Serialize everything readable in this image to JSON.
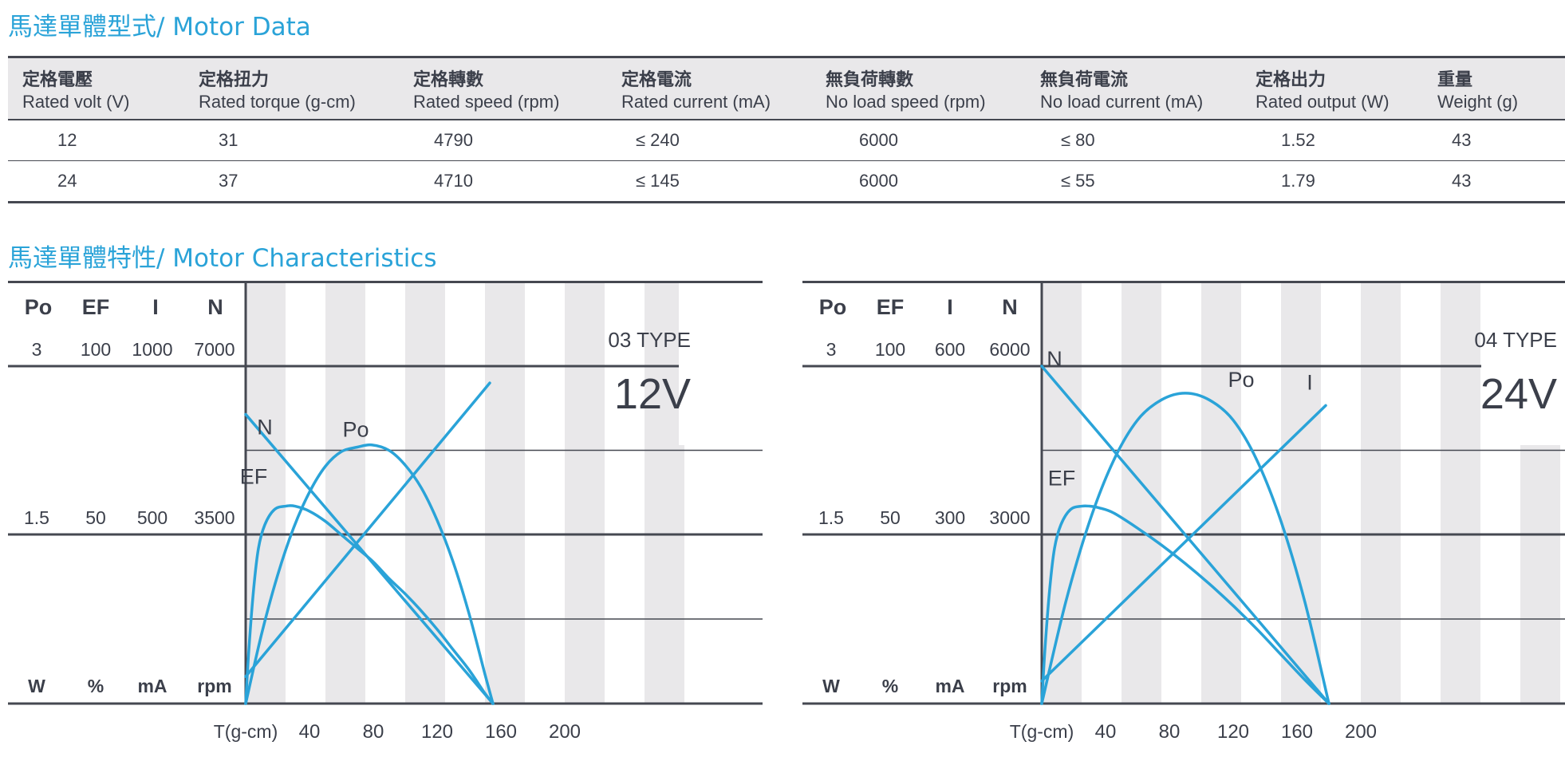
{
  "section_titles": {
    "motor_data": "馬達單體型式/ Motor Data",
    "characteristics": "馬達單體特性/ Motor Characteristics"
  },
  "spec_table": {
    "columns": [
      {
        "zh": "定格電壓",
        "en": "Rated volt (V)"
      },
      {
        "zh": "定格扭力",
        "en": "Rated torque (g-cm)"
      },
      {
        "zh": "定格轉數",
        "en": "Rated speed (rpm)"
      },
      {
        "zh": "定格電流",
        "en": "Rated current (mA)"
      },
      {
        "zh": "無負荷轉數",
        "en": "No load speed (rpm)"
      },
      {
        "zh": "無負荷電流",
        "en": "No load current (mA)"
      },
      {
        "zh": "定格出力",
        "en": "Rated output (W)"
      },
      {
        "zh": "重量",
        "en": "Weight (g)"
      }
    ],
    "rows": [
      [
        "12",
        "31",
        "4790",
        "≤ 240",
        "6000",
        "≤ 80",
        "1.52",
        "43"
      ],
      [
        "24",
        "37",
        "4710",
        "≤ 145",
        "6000",
        "≤ 55",
        "1.79",
        "43"
      ]
    ]
  },
  "colors": {
    "accent": "#2aa3d8",
    "curve": "#2aa3d8",
    "text_dark": "#3b3f4a",
    "band": "#e9e8ea",
    "rule": "#454851"
  },
  "chart_data": [
    {
      "type": "line",
      "type_label": "03 TYPE",
      "voltage": "12V",
      "axis_headers": [
        "Po",
        "EF",
        "I",
        "N"
      ],
      "top_values": [
        "3",
        "100",
        "1000",
        "7000"
      ],
      "mid_values": [
        "1.5",
        "50",
        "500",
        "3500"
      ],
      "units": [
        "W",
        "%",
        "mA",
        "rpm"
      ],
      "xlabel": "T(g-cm)",
      "x_ticks": [
        "40",
        "80",
        "120",
        "160",
        "200"
      ],
      "xlim": [
        0,
        260
      ],
      "series": [
        {
          "name": "N",
          "unit": "rpm",
          "max": 7000,
          "x": [
            0,
            155
          ],
          "y": [
            6000,
            0
          ]
        },
        {
          "name": "I",
          "unit": "mA",
          "max": 1000,
          "x": [
            0,
            153
          ],
          "y": [
            80,
            950
          ]
        },
        {
          "name": "Po",
          "unit": "W",
          "max": 3,
          "x": [
            0,
            10,
            20,
            30,
            40,
            50,
            60,
            70,
            79,
            90,
            100,
            110,
            120,
            130,
            140,
            150,
            155
          ],
          "y": [
            0,
            0.62,
            1.14,
            1.56,
            1.88,
            2.11,
            2.24,
            2.28,
            2.3,
            2.25,
            2.12,
            1.92,
            1.63,
            1.26,
            0.8,
            0.26,
            0
          ]
        },
        {
          "name": "EF",
          "unit": "%",
          "max": 100,
          "x": [
            0,
            2,
            5,
            8,
            12,
            18,
            25,
            31,
            40,
            50,
            60,
            70,
            80,
            90,
            100,
            110,
            120,
            130,
            140,
            150,
            155
          ],
          "y": [
            0,
            16,
            34,
            46,
            53,
            57.5,
            58.5,
            58.5,
            57,
            54,
            50,
            46,
            42,
            37,
            32.5,
            27.5,
            22,
            16,
            10,
            3,
            0
          ]
        }
      ]
    },
    {
      "type": "line",
      "type_label": "04 TYPE",
      "voltage": "24V",
      "axis_headers": [
        "Po",
        "EF",
        "I",
        "N"
      ],
      "top_values": [
        "3",
        "100",
        "600",
        "6000"
      ],
      "mid_values": [
        "1.5",
        "50",
        "300",
        "3000"
      ],
      "units": [
        "W",
        "%",
        "mA",
        "rpm"
      ],
      "xlabel": "T(g-cm)",
      "x_ticks": [
        "40",
        "80",
        "120",
        "160",
        "200"
      ],
      "xlim": [
        0,
        260
      ],
      "series": [
        {
          "name": "N",
          "unit": "rpm",
          "max": 6000,
          "x": [
            0,
            180
          ],
          "y": [
            6000,
            0
          ]
        },
        {
          "name": "I",
          "unit": "mA",
          "max": 600,
          "x": [
            0,
            178
          ],
          "y": [
            40,
            530
          ]
        },
        {
          "name": "Po",
          "unit": "W",
          "max": 3,
          "x": [
            0,
            15,
            30,
            45,
            60,
            75,
            90,
            105,
            120,
            135,
            150,
            165,
            180
          ],
          "y": [
            0,
            0.9,
            1.62,
            2.16,
            2.52,
            2.7,
            2.76,
            2.7,
            2.52,
            2.16,
            1.62,
            0.9,
            0
          ]
        },
        {
          "name": "EF",
          "unit": "%",
          "max": 100,
          "x": [
            0,
            2,
            5,
            8,
            12,
            18,
            25,
            30,
            36,
            45,
            60,
            75,
            90,
            105,
            120,
            135,
            150,
            165,
            180
          ],
          "y": [
            0,
            16,
            34,
            46,
            53,
            57.5,
            58.5,
            58.5,
            58,
            56.5,
            52,
            47,
            41.5,
            35.5,
            29,
            22,
            14.5,
            7,
            0
          ]
        }
      ]
    }
  ]
}
